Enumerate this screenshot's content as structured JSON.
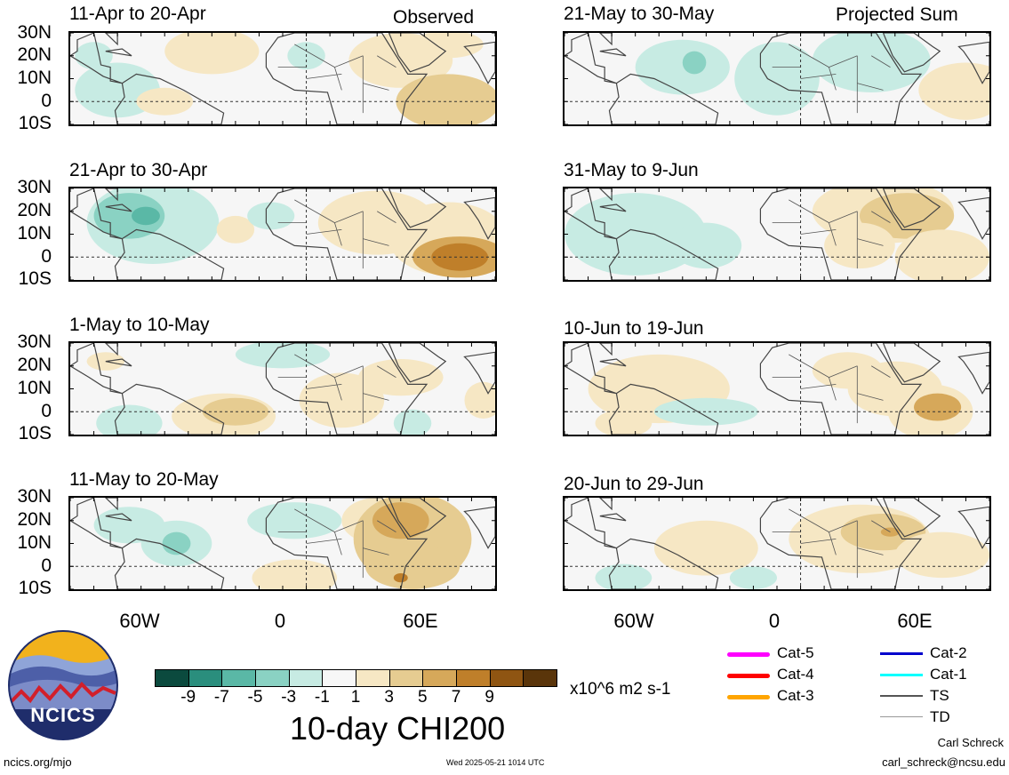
{
  "header": {
    "left_label": "Observed",
    "right_label": "Projected Sum"
  },
  "lat_labels": [
    "30N",
    "20N",
    "10N",
    "0",
    "10S"
  ],
  "lon_labels": [
    "60W",
    "0",
    "60E"
  ],
  "panels": [
    {
      "id": "p1",
      "title": "11-Apr to 20-Apr"
    },
    {
      "id": "p2",
      "title": "21-Apr to 30-Apr"
    },
    {
      "id": "p3",
      "title": "1-May to 10-May"
    },
    {
      "id": "p4",
      "title": "11-May to 20-May"
    },
    {
      "id": "p5",
      "title": "21-May to 30-May"
    },
    {
      "id": "p6",
      "title": "31-May to 9-Jun"
    },
    {
      "id": "p7",
      "title": "10-Jun to 19-Jun"
    },
    {
      "id": "p8",
      "title": "20-Jun to 29-Jun"
    }
  ],
  "colorbar": {
    "colors": [
      "#0b4a3e",
      "#2a8e7d",
      "#5ab8a6",
      "#8ad2c3",
      "#c7ebe3",
      "#f7f7f7",
      "#f6e7c4",
      "#e6cc91",
      "#d6a85a",
      "#bf7f2a",
      "#8f5512",
      "#5a350a"
    ],
    "ticks": [
      "-9",
      "-7",
      "-5",
      "-3",
      "-1",
      "1",
      "3",
      "5",
      "7",
      "9"
    ],
    "units": "x10^6 m2 s-1",
    "title": "10-day CHI200"
  },
  "storm_key": [
    {
      "label": "Cat-5",
      "color": "#ff00ff"
    },
    {
      "label": "Cat-4",
      "color": "#ff0000"
    },
    {
      "label": "Cat-3",
      "color": "#ffa500"
    },
    {
      "label": "Cat-2",
      "color": "#0000cc"
    },
    {
      "label": "Cat-1",
      "color": "#00ffff"
    },
    {
      "label": "TS",
      "color": "#555555"
    },
    {
      "label": "TD",
      "color": "#999999"
    }
  ],
  "logo_text": "NCICS",
  "footer": {
    "url": "ncics.org/mjo",
    "timestamp": "Wed 2025-05-21 1014 UTC",
    "author": "Carl Schreck",
    "email": "carl_schreck@ncsu.edu"
  }
}
